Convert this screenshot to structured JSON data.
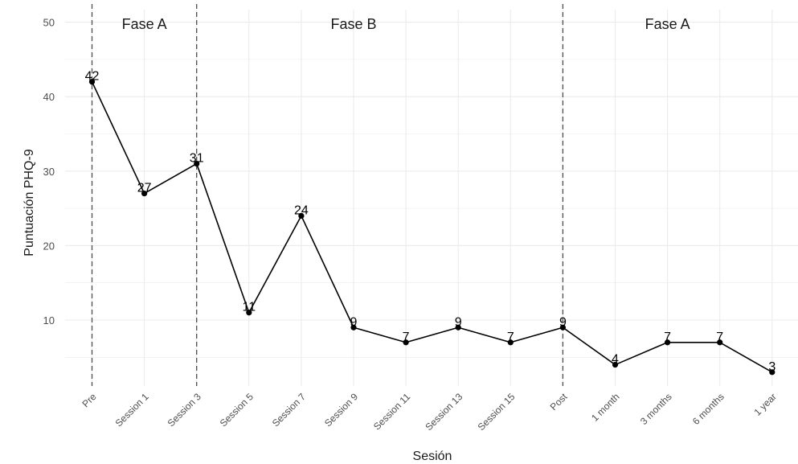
{
  "chart_data": {
    "type": "line",
    "title": "",
    "xlabel": "Sesión",
    "ylabel": "Puntuación PHQ-9",
    "ylim": [
      0.5,
      51.5
    ],
    "yticks": [
      10,
      20,
      30,
      40,
      50
    ],
    "categories": [
      "Pre",
      "Session 1",
      "Session 3",
      "Session 5",
      "Session 7",
      "Session 9",
      "Session 11",
      "Session 13",
      "Session 15",
      "Post",
      "1 month",
      "3 months",
      "6 months",
      "1 year"
    ],
    "series": [
      {
        "values": [
          42,
          27,
          31,
          11,
          24,
          9,
          7,
          9,
          7,
          9,
          4,
          7,
          7,
          3
        ]
      }
    ],
    "data_labels": [
      "42",
      "27",
      "31",
      "11",
      "24",
      "9",
      "7",
      "9",
      "7",
      "9",
      "4",
      "7",
      "7",
      "3"
    ],
    "phase_lines_at": [
      "Pre",
      "Session 3",
      "Post"
    ],
    "phases": [
      {
        "label": "Fase A",
        "at": "Session 1"
      },
      {
        "label": "Fase B",
        "at": "Session 9"
      },
      {
        "label": "Fase A",
        "at": "3 months"
      }
    ],
    "grid": true,
    "line_color": "#000000",
    "grid_color": "#ebebeb",
    "phase_line_color": "#4d4d4d"
  }
}
